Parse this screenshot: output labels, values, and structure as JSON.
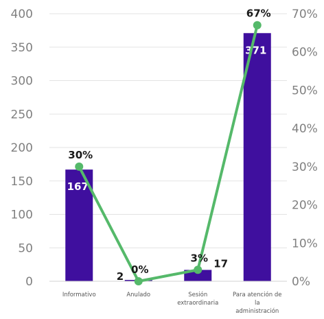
{
  "chart_data": {
    "type": "bar",
    "categories": [
      [
        "Informativo"
      ],
      [
        "Anulado"
      ],
      [
        "Sesión",
        "extraordinaria"
      ],
      [
        "Para atención de",
        "la",
        "administración"
      ]
    ],
    "series": [
      {
        "type": "bar",
        "axis": "left",
        "values": [
          167,
          2,
          17,
          371
        ],
        "value_labels": [
          "167",
          "2",
          "17",
          "371"
        ],
        "color": "#3f0f9e"
      },
      {
        "type": "line",
        "axis": "right",
        "values": [
          30,
          0,
          3,
          67
        ],
        "value_labels": [
          "30%",
          "0%",
          "3%",
          "67%"
        ],
        "color": "#55b96a"
      }
    ],
    "y_left": {
      "min": 0,
      "max": 400,
      "ticks": [
        0,
        50,
        100,
        150,
        200,
        250,
        300,
        350,
        400
      ]
    },
    "y_right": {
      "min": 0,
      "max": 70,
      "ticks": [
        "0%",
        "10%",
        "20%",
        "30%",
        "40%",
        "50%",
        "60%",
        "70%"
      ]
    },
    "grid": true,
    "legend": "none"
  }
}
